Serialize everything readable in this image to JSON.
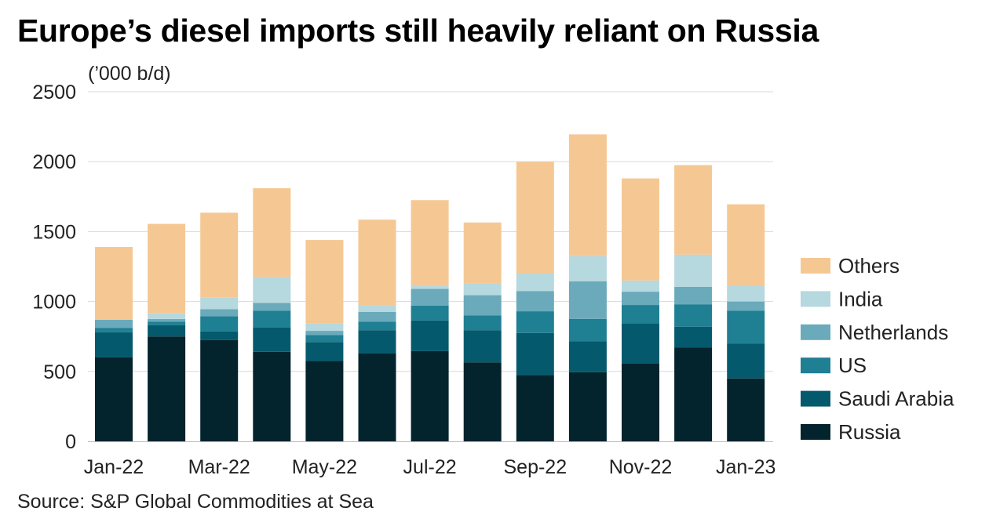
{
  "title": "Europe’s diesel imports still heavily reliant on Russia",
  "unit_label": "(’000 b/d)",
  "source": "Source: S&P Global Commodities at Sea",
  "chart_data": {
    "type": "bar",
    "stacked": true,
    "categories": [
      "Jan-22",
      "Feb-22",
      "Mar-22",
      "Apr-22",
      "May-22",
      "Jun-22",
      "Jul-22",
      "Aug-22",
      "Sep-22",
      "Oct-22",
      "Nov-22",
      "Dec-22",
      "Jan-23"
    ],
    "x_tick_labels": [
      "Jan-22",
      "Mar-22",
      "May-22",
      "Jul-22",
      "Sep-22",
      "Nov-22",
      "Jan-23"
    ],
    "ylim": [
      0,
      2500
    ],
    "yticks": [
      0,
      500,
      1000,
      1500,
      2000,
      2500
    ],
    "grid": true,
    "legend_position": "right",
    "series": [
      {
        "name": "Russia",
        "color": "#03232d",
        "values": [
          600,
          750,
          725,
          640,
          575,
          630,
          645,
          565,
          475,
          495,
          555,
          670,
          450
        ]
      },
      {
        "name": "Saudi Arabia",
        "color": "#045a6c",
        "values": [
          180,
          80,
          60,
          175,
          135,
          165,
          220,
          230,
          300,
          220,
          290,
          150,
          250
        ]
      },
      {
        "name": "US",
        "color": "#1f7f93",
        "values": [
          30,
          25,
          110,
          120,
          50,
          60,
          105,
          105,
          155,
          160,
          130,
          160,
          235
        ]
      },
      {
        "name": "Netherlands",
        "color": "#6aaabb",
        "values": [
          60,
          20,
          50,
          55,
          30,
          70,
          120,
          145,
          145,
          270,
          95,
          125,
          65
        ]
      },
      {
        "name": "India",
        "color": "#b6d8df",
        "values": [
          0,
          40,
          85,
          185,
          55,
          45,
          25,
          85,
          125,
          180,
          80,
          230,
          110
        ]
      },
      {
        "name": "Others",
        "color": "#f5c893",
        "values": [
          520,
          640,
          605,
          635,
          595,
          615,
          610,
          435,
          800,
          870,
          730,
          640,
          585
        ]
      }
    ]
  }
}
